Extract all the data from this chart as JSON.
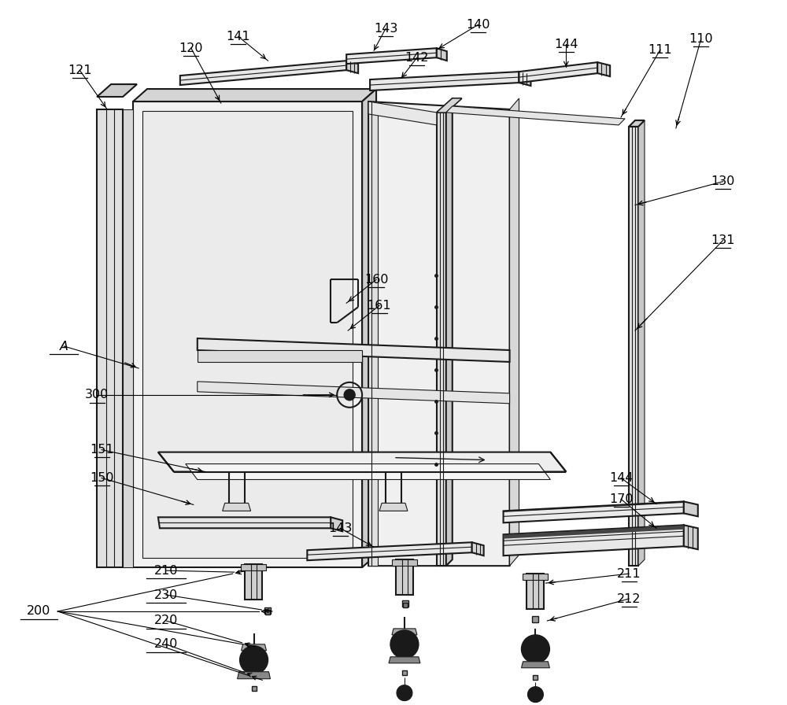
{
  "bg_color": "#ffffff",
  "lc": "#1a1a1a",
  "lw": 1.5,
  "tlw": 0.8,
  "fig_w": 10.0,
  "fig_h": 8.96
}
